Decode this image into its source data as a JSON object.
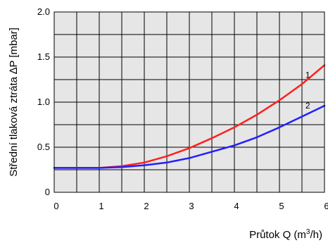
{
  "chart_data": {
    "type": "line",
    "title": "",
    "xlabel_main": "Průtok Q (m",
    "xlabel_sup": "3",
    "xlabel_end": "/h)",
    "ylabel": "Střední tlaková ztráta ∆P [mbar]",
    "xlim": [
      0,
      6
    ],
    "ylim": [
      0,
      2
    ],
    "x_ticks": [
      "0",
      "1",
      "2",
      "3",
      "4",
      "5",
      "6"
    ],
    "y_ticks": [
      "0",
      "0.5",
      "1.0",
      "1.5",
      "2.0"
    ],
    "grid": true,
    "series": [
      {
        "name": "1",
        "color": "#ff2020",
        "x": [
          0,
          0.5,
          1.0,
          1.5,
          2.0,
          2.5,
          3.0,
          3.5,
          4.0,
          4.5,
          5.0,
          5.5,
          6.0
        ],
        "y": [
          0.27,
          0.27,
          0.27,
          0.29,
          0.33,
          0.4,
          0.49,
          0.6,
          0.72,
          0.86,
          1.02,
          1.2,
          1.41
        ]
      },
      {
        "name": "2",
        "color": "#2020ff",
        "x": [
          0,
          0.5,
          1.0,
          1.5,
          2.0,
          2.5,
          3.0,
          3.5,
          4.0,
          4.5,
          5.0,
          5.5,
          6.0
        ],
        "y": [
          0.27,
          0.27,
          0.27,
          0.28,
          0.3,
          0.33,
          0.38,
          0.45,
          0.52,
          0.61,
          0.72,
          0.84,
          0.96
        ]
      }
    ]
  }
}
